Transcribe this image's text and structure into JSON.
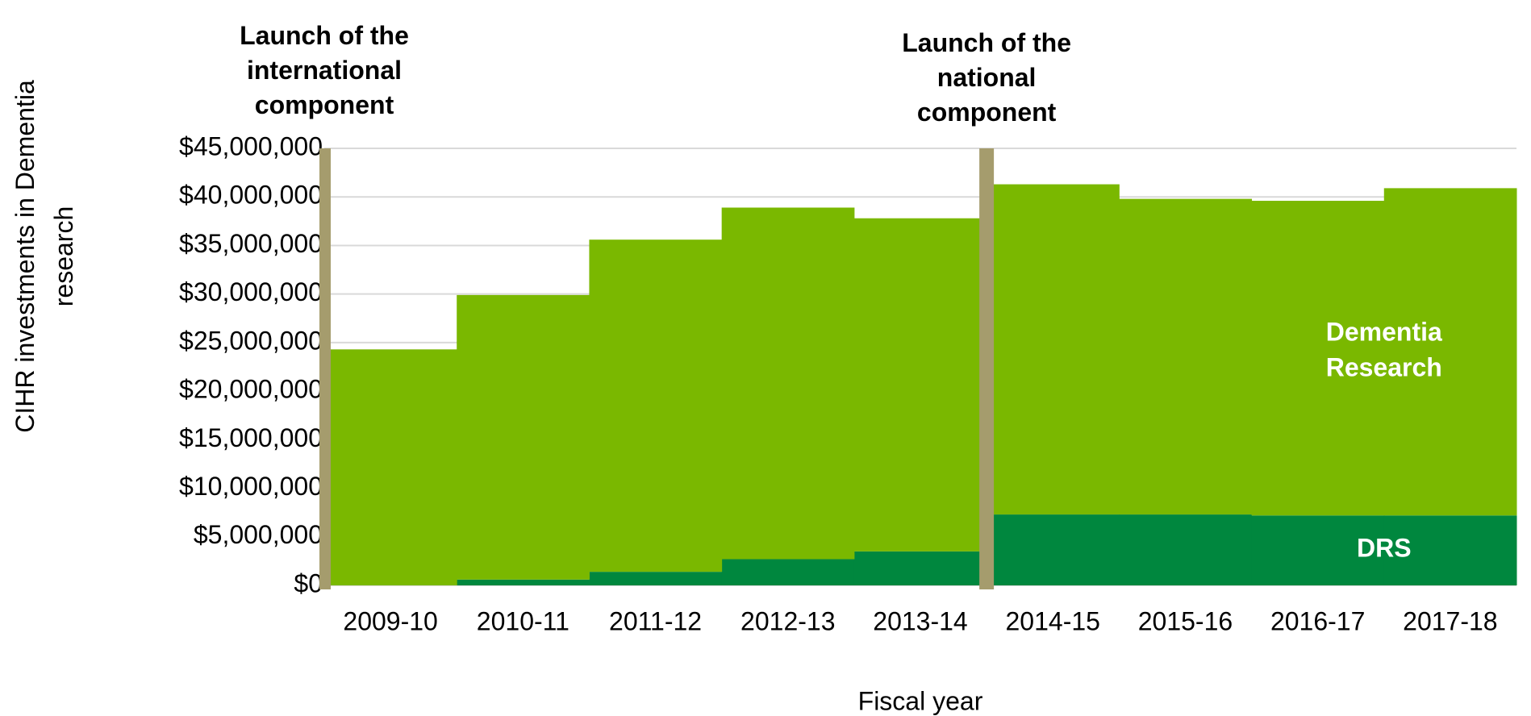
{
  "chart_data": {
    "type": "stacked-step-area",
    "y_label": "CIHR investments in Dementia research",
    "x_label": "Fiscal year",
    "categories": [
      "2009-10",
      "2010-11",
      "2011-12",
      "2012-13",
      "2013-14",
      "2014-15",
      "2015-16",
      "2016-17",
      "2017-18"
    ],
    "series": [
      {
        "name": "DRS",
        "color": "#00873e",
        "values": [
          0,
          600000,
          1400000,
          2700000,
          3500000,
          7300000,
          7300000,
          7200000,
          7200000
        ]
      },
      {
        "name": "Dementia Research",
        "color": "#7ab800",
        "values": [
          24300000,
          29300000,
          34200000,
          36200000,
          34300000,
          34000000,
          32500000,
          32400000,
          33700000
        ]
      }
    ],
    "ylim": [
      0,
      45000000
    ],
    "yticks": [
      {
        "value": 0,
        "label": "$0"
      },
      {
        "value": 5000000,
        "label": "$5,000,000"
      },
      {
        "value": 10000000,
        "label": "$10,000,000"
      },
      {
        "value": 15000000,
        "label": "$15,000,000"
      },
      {
        "value": 20000000,
        "label": "$20,000,000"
      },
      {
        "value": 25000000,
        "label": "$25,000,000"
      },
      {
        "value": 30000000,
        "label": "$30,000,000"
      },
      {
        "value": 35000000,
        "label": "$35,000,000"
      },
      {
        "value": 40000000,
        "label": "$40,000,000"
      },
      {
        "value": 45000000,
        "label": "$45,000,000"
      }
    ],
    "grid": true,
    "annotations": [
      {
        "text": "Launch of the international component",
        "at_category": "2009-10",
        "color": "#a59c6d"
      },
      {
        "text": "Launch of the national component",
        "at_category": "2014-15",
        "color": "#a59c6d"
      }
    ]
  }
}
